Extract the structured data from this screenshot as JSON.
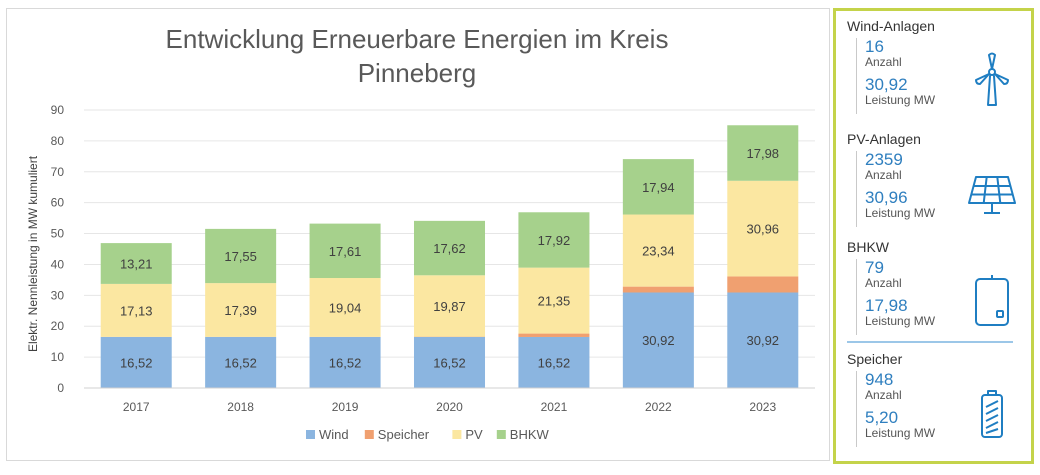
{
  "chart_data": {
    "type": "bar",
    "stacked": true,
    "title": "Entwicklung Erneuerbare Energien im Kreis Pinneberg",
    "title_lines": [
      "Entwicklung Erneuerbare Energien im Kreis",
      "Pinneberg"
    ],
    "ylabel": "Elektr. Nennleistung in MW kumuliert",
    "xlabel": "",
    "ylim": [
      0,
      90
    ],
    "yticks": [
      0,
      10,
      20,
      30,
      40,
      50,
      60,
      70,
      80,
      90
    ],
    "grid": true,
    "legend_position": "bottom",
    "categories": [
      "2017",
      "2018",
      "2019",
      "2020",
      "2021",
      "2022",
      "2023"
    ],
    "series": [
      {
        "name": "Wind",
        "color": "#8bb5e0",
        "values": [
          16.52,
          16.52,
          16.52,
          16.52,
          16.52,
          30.92,
          30.92
        ],
        "labels": [
          "16,52",
          "16,52",
          "16,52",
          "16,52",
          "16,52",
          "30,92",
          "30,92"
        ]
      },
      {
        "name": "Speicher",
        "color": "#f0a070",
        "values": [
          0.05,
          0.05,
          0.05,
          0.1,
          1.1,
          1.9,
          5.2
        ],
        "labels": [
          "",
          "",
          "",
          "",
          "",
          "",
          ""
        ]
      },
      {
        "name": "PV",
        "color": "#fbe7a1",
        "values": [
          17.13,
          17.39,
          19.04,
          19.87,
          21.35,
          23.34,
          30.96
        ],
        "labels": [
          "17,13",
          "17,39",
          "19,04",
          "19,87",
          "21,35",
          "23,34",
          "30,96"
        ]
      },
      {
        "name": "BHKW",
        "color": "#a6d18c",
        "values": [
          13.21,
          17.55,
          17.61,
          17.62,
          17.92,
          17.94,
          17.98
        ],
        "labels": [
          "13,21",
          "17,55",
          "17,61",
          "17,62",
          "17,92",
          "17,94",
          "17,98"
        ]
      }
    ]
  },
  "side_panel": {
    "border_color": "#c4d34a",
    "value_color": "#2f7fbf",
    "sections": [
      {
        "title": "Wind-Anlagen",
        "count_value": "16",
        "count_label": "Anzahl",
        "power_value": "30,92",
        "power_label": "Leistung MW",
        "icon": "wind-turbine-icon"
      },
      {
        "title": "PV-Anlagen",
        "count_value": "2359",
        "count_label": "Anzahl",
        "power_value": "30,96",
        "power_label": "Leistung MW",
        "icon": "solar-panel-icon"
      },
      {
        "title": "BHKW",
        "count_value": "79",
        "count_label": "Anzahl",
        "power_value": "17,98",
        "power_label": "Leistung MW",
        "icon": "boiler-icon"
      },
      {
        "title": "Speicher",
        "count_value": "948",
        "count_label": "Anzahl",
        "power_value": "5,20",
        "power_label": "Leistung MW",
        "icon": "battery-icon"
      }
    ]
  }
}
